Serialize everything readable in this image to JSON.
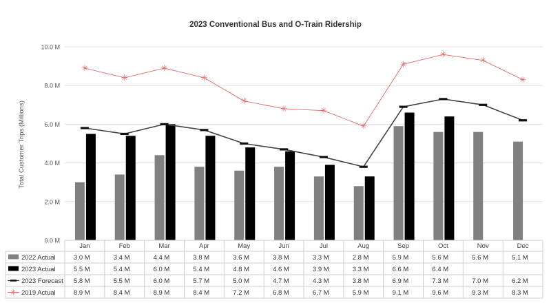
{
  "chart_data": {
    "type": "bar",
    "title": "2023 Conventional Bus and O-Train Ridership",
    "ylabel": "Total Customer Trips (Millions)",
    "xlabel": "",
    "ylim": [
      0,
      10
    ],
    "yticks": [
      "0.0 M",
      "2.0 M",
      "4.0 M",
      "6.0 M",
      "8.0 M",
      "10.0 M"
    ],
    "ytick_values": [
      0,
      2,
      4,
      6,
      8,
      10
    ],
    "grid": true,
    "categories": [
      "Jan",
      "Feb",
      "Mar",
      "Apr",
      "May",
      "Jun",
      "Jul",
      "Aug",
      "Sep",
      "Oct",
      "Nov",
      "Dec"
    ],
    "series": [
      {
        "name": "2022 Actual",
        "kind": "bar",
        "color": "#808080",
        "values": [
          3.0,
          3.4,
          4.4,
          3.8,
          3.6,
          3.8,
          3.3,
          2.8,
          5.9,
          5.6,
          5.6,
          5.1
        ],
        "labels": [
          "3.0 M",
          "3.4 M",
          "4.4 M",
          "3.8 M",
          "3.6 M",
          "3.8 M",
          "3.3 M",
          "2.8 M",
          "5.9 M",
          "5.6 M",
          "5.6 M",
          "5.1 M"
        ]
      },
      {
        "name": "2023 Actual",
        "kind": "bar",
        "color": "#000000",
        "values": [
          5.5,
          5.4,
          6.0,
          5.4,
          4.8,
          4.6,
          3.9,
          3.3,
          6.6,
          6.4,
          null,
          null
        ],
        "labels": [
          "5.5 M",
          "5.4 M",
          "6.0 M",
          "5.4 M",
          "4.8 M",
          "4.6 M",
          "3.9 M",
          "3.3 M",
          "6.6 M",
          "6.4 M",
          "",
          ""
        ]
      },
      {
        "name": "2023 Forecast",
        "kind": "line",
        "color": "#444444",
        "values": [
          5.8,
          5.5,
          6.0,
          5.7,
          5.0,
          4.7,
          4.3,
          3.8,
          6.9,
          7.3,
          7.0,
          6.2
        ],
        "labels": [
          "5.8 M",
          "5.5 M",
          "6.0 M",
          "5.7 M",
          "5.0 M",
          "4.7 M",
          "4.3 M",
          "3.8 M",
          "6.9 M",
          "7.3 M",
          "7.0 M",
          "6.2 M"
        ]
      },
      {
        "name": "2019 Actual",
        "kind": "line-marker",
        "color": "#e06666",
        "values": [
          8.9,
          8.4,
          8.9,
          8.4,
          7.2,
          6.8,
          6.7,
          5.9,
          9.1,
          9.6,
          9.3,
          8.3
        ],
        "labels": [
          "8.9 M",
          "8.4 M",
          "8.9 M",
          "8.4 M",
          "7.2 M",
          "6.8 M",
          "6.7 M",
          "5.9 M",
          "9.1 M",
          "9.6 M",
          "9.3 M",
          "8.3 M"
        ]
      }
    ],
    "legend": "data-table-below"
  }
}
